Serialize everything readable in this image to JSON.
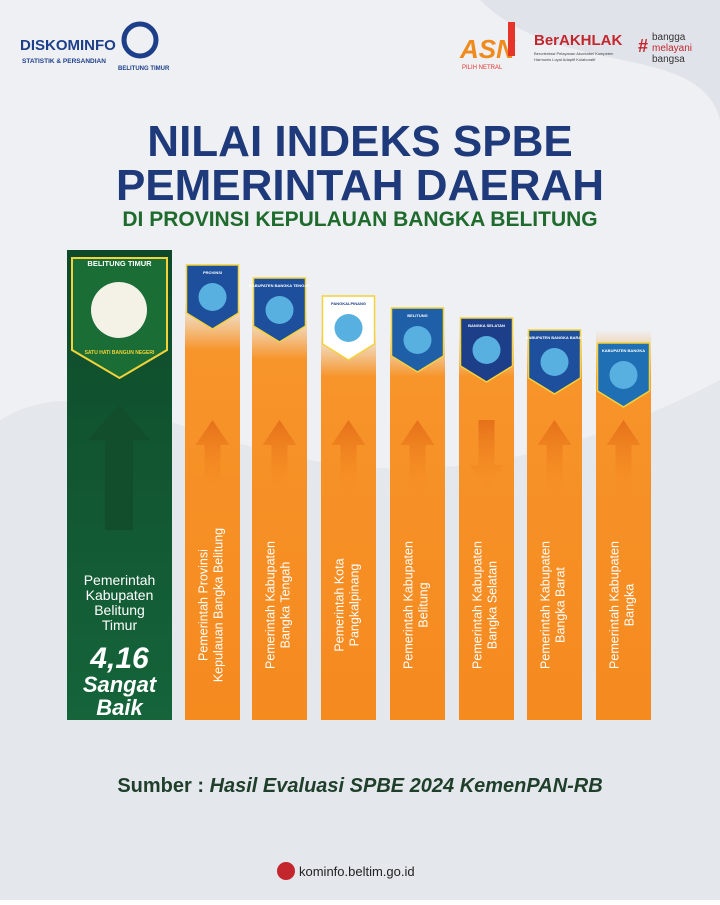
{
  "header": {
    "logo": {
      "name": "DISKOMINFO",
      "subtitle": "STATISTIK & PERSANDIAN",
      "region": "BELITUNG TIMUR"
    },
    "asn": {
      "mark": "ASN",
      "tagline": "PILIH NETRAL"
    },
    "berakhlak": {
      "name": "BerAKHLAK",
      "tagline_lines": [
        "Berorientasi Pelayanan Akuntabel Kompeten",
        "Harmonis Loyal Adaptif Kolaboratif"
      ]
    },
    "bangga": {
      "lines": [
        "bangga",
        "melayani",
        "bangsa"
      ]
    }
  },
  "title": {
    "line1": "NILAI INDEKS SPBE",
    "line2": "PEMERINTAH DAERAH",
    "subtitle": "DI PROVINSI KEPULAUAN BANGKA BELITUNG"
  },
  "featured": {
    "emblem_top": "BELITUNG TIMUR",
    "emblem_motto": "SATU HATI BANGUN NEGERI",
    "name_lines": [
      "Pemerintah",
      "Kabupaten",
      "Belitung",
      "Timur"
    ],
    "score": "4,16",
    "rating_lines": [
      "Sangat",
      "Baik"
    ]
  },
  "columns": [
    {
      "emblem": "PROVINSI",
      "name_lines": [
        "Pemerintah Provinsi",
        "Kepulauan Bangka Belitung"
      ]
    },
    {
      "emblem": "KABUPATEN BANGKA TENGAH",
      "name_lines": [
        "Pemerintah Kabupaten",
        "Bangka Tengah"
      ]
    },
    {
      "emblem": "PANGKALPINANG",
      "name_lines": [
        "Pemerintah Kota",
        "Pangkalpinang"
      ]
    },
    {
      "emblem": "BELITUNG",
      "name_lines": [
        "Pemerintah Kabupaten",
        "Belitung"
      ]
    },
    {
      "emblem": "BANGKA SELATAN",
      "name_lines": [
        "Pemerintah Kabupaten",
        "Bangka Selatan"
      ]
    },
    {
      "emblem": "KABUPATEN BANGKA BARAT",
      "name_lines": [
        "Pemerintah Kabupaten",
        "Bangka Barat"
      ]
    },
    {
      "emblem": "KABUPATEN BANGKA",
      "name_lines": [
        "Pemerintah Kabupaten",
        "Bangka"
      ]
    }
  ],
  "footer": {
    "source_label": "Sumber : ",
    "source": "Hasil Evaluasi SPBE 2024 KemenPAN-RB",
    "website": "kominfo.beltim.go.id"
  }
}
